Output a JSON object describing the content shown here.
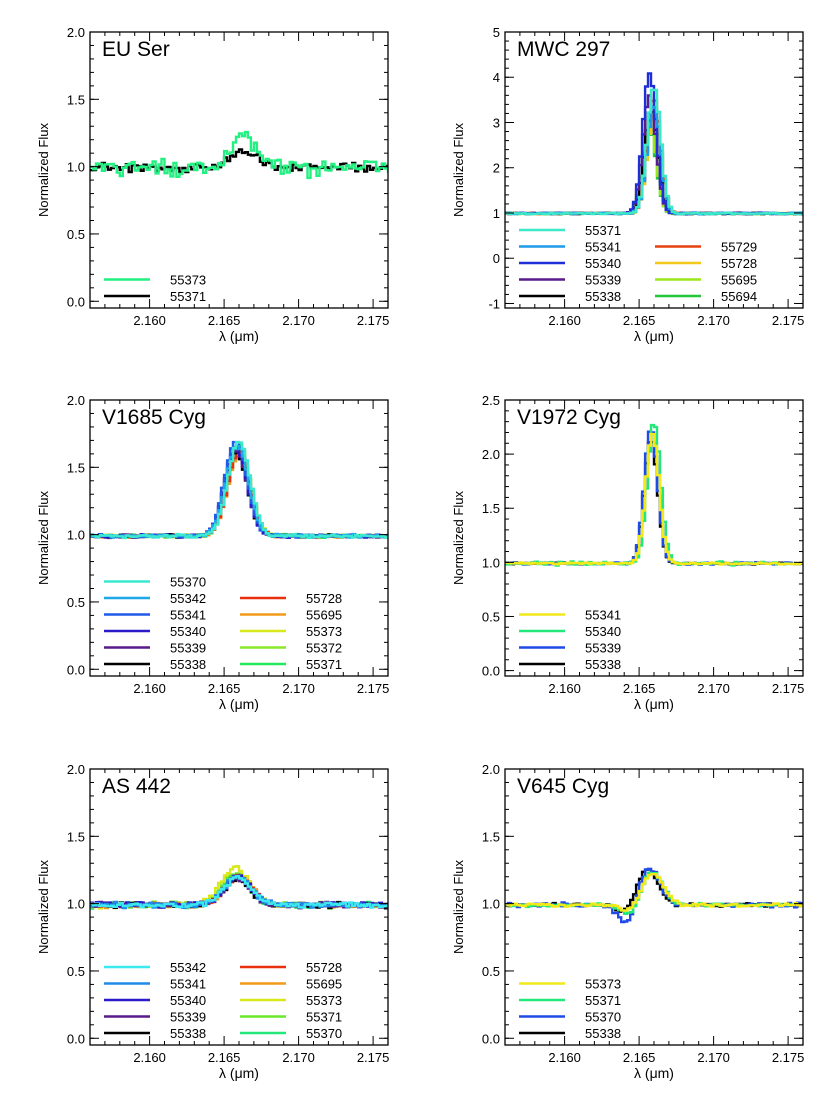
{
  "chart_data": [
    {
      "type": "line",
      "title": "EU Ser",
      "xlabel": "λ (μm)",
      "ylabel": "Normalized Flux",
      "xlim": [
        2.156,
        2.176
      ],
      "ylim": [
        -0.05,
        2.0
      ],
      "xticks": [
        "2.160",
        "2.165",
        "2.170",
        "2.175"
      ],
      "yticks": [
        "0.0",
        "0.5",
        "1.0",
        "1.5",
        "2.0"
      ],
      "grid": false,
      "legend_columns": 1,
      "series": [
        {
          "name": "55373",
          "color": "#22f080",
          "peak": 1.25,
          "center": 2.1663,
          "width": 0.0008,
          "dip": 0,
          "noise": 0.08
        },
        {
          "name": "55371",
          "color": "#000000",
          "peak": 1.12,
          "center": 2.1663,
          "width": 0.0009,
          "dip": 0,
          "noise": 0.04
        }
      ]
    },
    {
      "type": "line",
      "title": "MWC 297",
      "xlabel": "λ (μm)",
      "ylabel": "Normalized Flux",
      "xlim": [
        2.156,
        2.176
      ],
      "ylim": [
        -1.1,
        5.0
      ],
      "xticks": [
        "2.160",
        "2.165",
        "2.170",
        "2.175"
      ],
      "yticks": [
        "-1",
        "0",
        "1",
        "2",
        "3",
        "4",
        "5"
      ],
      "grid": false,
      "legend_columns": 2,
      "series": [
        {
          "name": "55371",
          "color": "#3be8c8",
          "peak": 3.8,
          "center": 2.166,
          "width": 0.00045,
          "dip": 0,
          "noise": 0.02
        },
        {
          "name": "55341",
          "color": "#1f9ae8",
          "peak": 3.4,
          "center": 2.166,
          "width": 0.00045,
          "dip": 0,
          "noise": 0.02
        },
        {
          "name": "55340",
          "color": "#1f2fd8",
          "peak": 4.1,
          "center": 2.1657,
          "width": 0.00045,
          "dip": 0,
          "noise": 0.02
        },
        {
          "name": "55339",
          "color": "#5a1a8c",
          "peak": 3.6,
          "center": 2.1657,
          "width": 0.00045,
          "dip": 0,
          "noise": 0.02
        },
        {
          "name": "55338",
          "color": "#000000",
          "peak": 3.3,
          "center": 2.1658,
          "width": 0.00045,
          "dip": 0,
          "noise": 0.02
        },
        {
          "name": "55729",
          "color": "#e8400f",
          "peak": 3.55,
          "center": 2.166,
          "width": 0.00045,
          "dip": 0,
          "noise": 0.02
        },
        {
          "name": "55728",
          "color": "#f2c81a",
          "peak": 3.2,
          "center": 2.166,
          "width": 0.00045,
          "dip": 0,
          "noise": 0.02
        },
        {
          "name": "55695",
          "color": "#9ae81a",
          "peak": 3.0,
          "center": 2.1657,
          "width": 0.00045,
          "dip": 0,
          "noise": 0.02
        },
        {
          "name": "55694",
          "color": "#22c83a",
          "peak": 2.9,
          "center": 2.1657,
          "width": 0.00045,
          "dip": 0,
          "noise": 0.02
        }
      ]
    },
    {
      "type": "line",
      "title": "V1685 Cyg",
      "xlabel": "λ (μm)",
      "ylabel": "Normalized Flux",
      "xlim": [
        2.156,
        2.176
      ],
      "ylim": [
        -0.05,
        2.0
      ],
      "xticks": [
        "2.160",
        "2.165",
        "2.170",
        "2.175"
      ],
      "yticks": [
        "0.0",
        "0.5",
        "1.0",
        "1.5",
        "2.0"
      ],
      "grid": false,
      "legend_columns": 2,
      "series": [
        {
          "name": "55370",
          "color": "#3be8d0",
          "peak": 1.7,
          "center": 2.166,
          "width": 0.00075,
          "dip": 0,
          "noise": 0.015
        },
        {
          "name": "55342",
          "color": "#1fa8e8",
          "peak": 1.68,
          "center": 2.1659,
          "width": 0.00075,
          "dip": 0,
          "noise": 0.015
        },
        {
          "name": "55341",
          "color": "#1f5ae8",
          "peak": 1.71,
          "center": 2.1658,
          "width": 0.00075,
          "dip": 0,
          "noise": 0.015
        },
        {
          "name": "55340",
          "color": "#2a1ac8",
          "peak": 1.66,
          "center": 2.1658,
          "width": 0.00075,
          "dip": 0,
          "noise": 0.015
        },
        {
          "name": "55339",
          "color": "#5a1a8c",
          "peak": 1.64,
          "center": 2.1658,
          "width": 0.00075,
          "dip": 0,
          "noise": 0.015
        },
        {
          "name": "55338",
          "color": "#000000",
          "peak": 1.62,
          "center": 2.1658,
          "width": 0.00075,
          "dip": 0,
          "noise": 0.015
        },
        {
          "name": "55728",
          "color": "#e8300f",
          "peak": 1.63,
          "center": 2.166,
          "width": 0.00075,
          "dip": 0,
          "noise": 0.01
        },
        {
          "name": "55695",
          "color": "#f29a1a",
          "peak": 1.6,
          "center": 2.166,
          "width": 0.00075,
          "dip": 0,
          "noise": 0.015
        },
        {
          "name": "55373",
          "color": "#d8e81a",
          "peak": 1.66,
          "center": 2.166,
          "width": 0.00075,
          "dip": 0,
          "noise": 0.015
        },
        {
          "name": "55372",
          "color": "#8ae82a",
          "peak": 1.65,
          "center": 2.166,
          "width": 0.00075,
          "dip": 0,
          "noise": 0.015
        },
        {
          "name": "55371",
          "color": "#22e85a",
          "peak": 1.67,
          "center": 2.166,
          "width": 0.00075,
          "dip": 0,
          "noise": 0.015
        }
      ]
    },
    {
      "type": "line",
      "title": "V1972 Cyg",
      "xlabel": "λ (μm)",
      "ylabel": "Normalized Flux",
      "xlim": [
        2.156,
        2.176
      ],
      "ylim": [
        -0.05,
        2.5
      ],
      "xticks": [
        "2.160",
        "2.165",
        "2.170",
        "2.175"
      ],
      "yticks": [
        "0.0",
        "0.5",
        "1.0",
        "1.5",
        "2.0",
        "2.5"
      ],
      "grid": false,
      "legend_columns": 1,
      "series": [
        {
          "name": "55341",
          "color": "#f2e81a",
          "peak": 2.2,
          "center": 2.1659,
          "width": 0.00045,
          "dip": 0,
          "noise": 0.01
        },
        {
          "name": "55340",
          "color": "#22e87a",
          "peak": 2.3,
          "center": 2.166,
          "width": 0.00045,
          "dip": 0,
          "noise": 0.02
        },
        {
          "name": "55339",
          "color": "#1f4ae8",
          "peak": 2.25,
          "center": 2.1658,
          "width": 0.00045,
          "dip": 0,
          "noise": 0.015
        },
        {
          "name": "55338",
          "color": "#000000",
          "peak": 2.15,
          "center": 2.1658,
          "width": 0.00045,
          "dip": 0,
          "noise": 0.01
        }
      ]
    },
    {
      "type": "line",
      "title": "AS 442",
      "xlabel": "λ (μm)",
      "ylabel": "Normalized Flux",
      "xlim": [
        2.156,
        2.176
      ],
      "ylim": [
        -0.05,
        2.0
      ],
      "xticks": [
        "2.160",
        "2.165",
        "2.170",
        "2.175"
      ],
      "yticks": [
        "0.0",
        "0.5",
        "1.0",
        "1.5",
        "2.0"
      ],
      "grid": false,
      "legend_columns": 2,
      "series": [
        {
          "name": "55342",
          "color": "#3be8f0",
          "peak": 1.2,
          "center": 2.1659,
          "width": 0.0009,
          "dip": 0,
          "noise": 0.025
        },
        {
          "name": "55341",
          "color": "#1f8ae8",
          "peak": 1.22,
          "center": 2.1659,
          "width": 0.0009,
          "dip": 0,
          "noise": 0.025
        },
        {
          "name": "55340",
          "color": "#2a1ac8",
          "peak": 1.21,
          "center": 2.1659,
          "width": 0.0009,
          "dip": 0,
          "noise": 0.025
        },
        {
          "name": "55339",
          "color": "#5a1a8c",
          "peak": 1.2,
          "center": 2.1659,
          "width": 0.0009,
          "dip": 0,
          "noise": 0.025
        },
        {
          "name": "55338",
          "color": "#000000",
          "peak": 1.19,
          "center": 2.1659,
          "width": 0.0009,
          "dip": 0,
          "noise": 0.025
        },
        {
          "name": "55728",
          "color": "#e8300f",
          "peak": 1.21,
          "center": 2.166,
          "width": 0.0009,
          "dip": 0,
          "noise": 0.015
        },
        {
          "name": "55695",
          "color": "#f29a1a",
          "peak": 1.2,
          "center": 2.166,
          "width": 0.0009,
          "dip": 0,
          "noise": 0.025
        },
        {
          "name": "55373",
          "color": "#d8e81a",
          "peak": 1.28,
          "center": 2.1657,
          "width": 0.0009,
          "dip": 0,
          "noise": 0.03
        },
        {
          "name": "55371",
          "color": "#6ae82a",
          "peak": 1.24,
          "center": 2.1658,
          "width": 0.0009,
          "dip": 0,
          "noise": 0.03
        },
        {
          "name": "55370",
          "color": "#22e87a",
          "peak": 1.23,
          "center": 2.1658,
          "width": 0.0009,
          "dip": 0,
          "noise": 0.03
        }
      ]
    },
    {
      "type": "line",
      "title": "V645 Cyg",
      "xlabel": "λ (μm)",
      "ylabel": "Normalized Flux",
      "xlim": [
        2.156,
        2.176
      ],
      "ylim": [
        -0.05,
        2.0
      ],
      "xticks": [
        "2.160",
        "2.165",
        "2.170",
        "2.175"
      ],
      "yticks": [
        "0.0",
        "0.5",
        "1.0",
        "1.5",
        "2.0"
      ],
      "grid": false,
      "legend_columns": 1,
      "series": [
        {
          "name": "55373",
          "color": "#f2e81a",
          "peak": 1.24,
          "center": 2.1659,
          "width": 0.0007,
          "dip": 0.05,
          "noise": 0.015
        },
        {
          "name": "55371",
          "color": "#22e87a",
          "peak": 1.25,
          "center": 2.1659,
          "width": 0.0007,
          "dip": 0.08,
          "noise": 0.015
        },
        {
          "name": "55370",
          "color": "#1f4ae8",
          "peak": 1.27,
          "center": 2.1657,
          "width": 0.0007,
          "dip": 0.15,
          "noise": 0.02
        },
        {
          "name": "55338",
          "color": "#000000",
          "peak": 1.27,
          "center": 2.1656,
          "width": 0.0007,
          "dip": 0.06,
          "noise": 0.015
        }
      ]
    }
  ]
}
